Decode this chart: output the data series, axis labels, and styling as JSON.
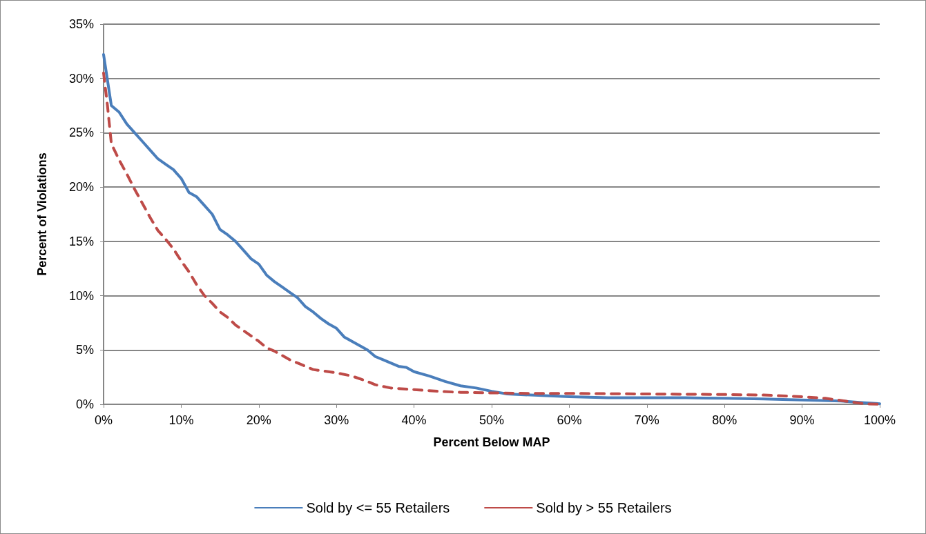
{
  "chart_data": {
    "type": "line",
    "xlabel": "Percent Below MAP",
    "ylabel": "Percent of Violations",
    "xlim": [
      0,
      100
    ],
    "xticks": [
      {
        "value": 0,
        "label": "0%"
      },
      {
        "value": 10,
        "label": "10%"
      },
      {
        "value": 20,
        "label": "20%"
      },
      {
        "value": 30,
        "label": "30%"
      },
      {
        "value": 40,
        "label": "40%"
      },
      {
        "value": 50,
        "label": "50%"
      },
      {
        "value": 60,
        "label": "60%"
      },
      {
        "value": 70,
        "label": "70%"
      },
      {
        "value": 80,
        "label": "80%"
      },
      {
        "value": 90,
        "label": "90%"
      },
      {
        "value": 100,
        "label": "100%"
      }
    ],
    "ylim": [
      0,
      35
    ],
    "yticks": [
      {
        "value": 0,
        "label": "0%"
      },
      {
        "value": 5,
        "label": "5%"
      },
      {
        "value": 10,
        "label": "10%"
      },
      {
        "value": 15,
        "label": "15%"
      },
      {
        "value": 20,
        "label": "20%"
      },
      {
        "value": 25,
        "label": "25%"
      },
      {
        "value": 30,
        "label": "30%"
      },
      {
        "value": 35,
        "label": "35%"
      }
    ],
    "grid": "y",
    "legend": "bottom",
    "marker": "none",
    "series": [
      {
        "name": "Sold by <= 55 Retailers",
        "color": "#4a7ebb",
        "line_style": "solid",
        "x": [
          0,
          1,
          2,
          3,
          4,
          5,
          6,
          7,
          8,
          9,
          10,
          11,
          12,
          13,
          14,
          15,
          16,
          17,
          18,
          19,
          20,
          21,
          22,
          23,
          24,
          25,
          26,
          27,
          28,
          29,
          30,
          31,
          32,
          33,
          34,
          35,
          36,
          37,
          38,
          39,
          40,
          42,
          44,
          46,
          48,
          50,
          52,
          55,
          60,
          65,
          70,
          75,
          80,
          85,
          90,
          95,
          98,
          100
        ],
        "values": [
          32.2,
          27.5,
          26.9,
          25.8,
          25.0,
          24.2,
          23.4,
          22.6,
          22.1,
          21.6,
          20.8,
          19.5,
          19.1,
          18.3,
          17.5,
          16.1,
          15.6,
          15.0,
          14.2,
          13.4,
          12.9,
          11.9,
          11.3,
          10.8,
          10.3,
          9.8,
          9.0,
          8.5,
          7.9,
          7.4,
          7.0,
          6.2,
          5.8,
          5.4,
          5.0,
          4.4,
          4.1,
          3.8,
          3.5,
          3.4,
          3.0,
          2.6,
          2.1,
          1.7,
          1.5,
          1.2,
          0.95,
          0.85,
          0.7,
          0.6,
          0.6,
          0.6,
          0.55,
          0.5,
          0.4,
          0.3,
          0.15,
          0.05
        ]
      },
      {
        "name": "Sold by > 55 Retailers",
        "color": "#be4b48",
        "line_style": "dashed",
        "x": [
          0,
          0.5,
          1,
          2,
          3,
          4,
          5,
          6,
          7,
          8,
          9,
          10,
          11,
          12,
          13,
          14,
          15,
          16,
          17,
          18,
          19,
          20,
          21,
          22,
          23,
          24,
          25,
          27,
          30,
          32,
          34,
          35,
          37,
          40,
          43,
          46,
          50,
          55,
          60,
          70,
          80,
          85,
          90,
          93,
          96,
          98,
          100
        ],
        "values": [
          30.5,
          27.5,
          24,
          22.5,
          21.2,
          19.8,
          18.5,
          17.2,
          16,
          15.2,
          14.3,
          13.2,
          12.2,
          11,
          10,
          9.3,
          8.5,
          8,
          7.3,
          6.8,
          6.3,
          5.8,
          5.2,
          4.9,
          4.5,
          4.1,
          3.8,
          3.2,
          2.9,
          2.6,
          2.1,
          1.8,
          1.5,
          1.35,
          1.2,
          1.1,
          1.05,
          1.0,
          1.0,
          0.95,
          0.9,
          0.85,
          0.7,
          0.55,
          0.25,
          0.05,
          0
        ]
      }
    ]
  }
}
